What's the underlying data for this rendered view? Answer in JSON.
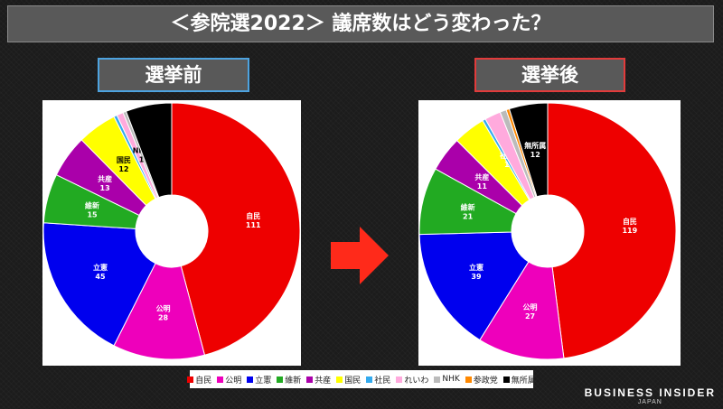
{
  "title": "＜参院選2022＞ 議席数はどう変わった？",
  "labels": {
    "before": "選挙前",
    "after": "選挙後"
  },
  "legend": [
    {
      "name": "自民",
      "color": "#ee0000"
    },
    {
      "name": "公明",
      "color": "#ee00bb"
    },
    {
      "name": "立憲",
      "color": "#0000ee"
    },
    {
      "name": "維新",
      "color": "#22aa22"
    },
    {
      "name": "共産",
      "color": "#aa00aa"
    },
    {
      "name": "国民",
      "color": "#ffff00"
    },
    {
      "name": "社民",
      "color": "#33aaee"
    },
    {
      "name": "れいわ",
      "color": "#ffaadd"
    },
    {
      "name": "NHK",
      "color": "#bbbbbb"
    },
    {
      "name": "参政党",
      "color": "#ff8800"
    },
    {
      "name": "無所属",
      "color": "#000000"
    }
  ],
  "brand": {
    "main": "BUSINESS INSIDER",
    "sub": "JAPAN"
  },
  "chart_data": [
    {
      "type": "pie",
      "donut": true,
      "title": "選挙前",
      "slices": [
        {
          "party": "自民",
          "value": 111,
          "label": true
        },
        {
          "party": "公明",
          "value": 28,
          "label": true
        },
        {
          "party": "立憲",
          "value": 45,
          "label": true
        },
        {
          "party": "維新",
          "value": 15,
          "label": true
        },
        {
          "party": "共産",
          "value": 13,
          "label": true
        },
        {
          "party": "国民",
          "value": 12,
          "label": true
        },
        {
          "party": "社民",
          "value": 1,
          "label": false
        },
        {
          "party": "れいわ",
          "value": 2,
          "label": false
        },
        {
          "party": "NHK",
          "value": 1,
          "label": true
        },
        {
          "party": "参政党",
          "value": 0,
          "label": false
        },
        {
          "party": "無所属",
          "value": 14,
          "label": false
        }
      ]
    },
    {
      "type": "pie",
      "donut": true,
      "title": "選挙後",
      "slices": [
        {
          "party": "自民",
          "value": 119,
          "label": true
        },
        {
          "party": "公明",
          "value": 27,
          "label": true
        },
        {
          "party": "立憲",
          "value": 39,
          "label": true
        },
        {
          "party": "維新",
          "value": 21,
          "label": true
        },
        {
          "party": "共産",
          "value": 11,
          "label": true
        },
        {
          "party": "国民",
          "value": 10,
          "label": false
        },
        {
          "party": "社民",
          "value": 1,
          "label": true
        },
        {
          "party": "れいわ",
          "value": 5,
          "label": false
        },
        {
          "party": "NHK",
          "value": 2,
          "label": false
        },
        {
          "party": "参政党",
          "value": 1,
          "label": false
        },
        {
          "party": "無所属",
          "value": 12,
          "label": true
        }
      ]
    }
  ]
}
